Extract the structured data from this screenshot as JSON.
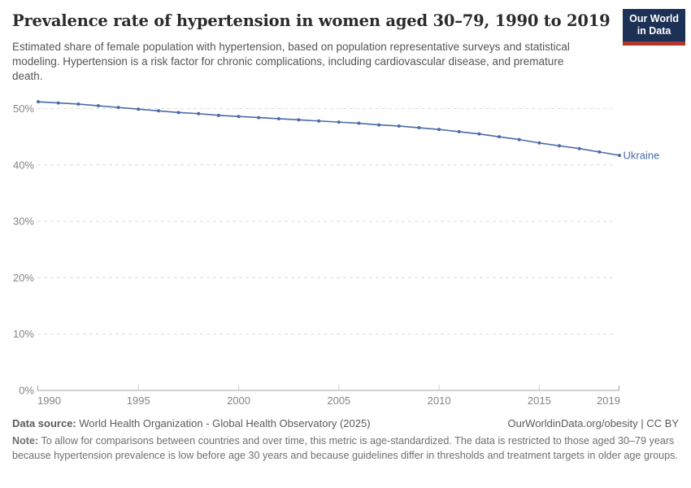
{
  "header": {
    "title": "Prevalence rate of hypertension in women aged 30–79, 1990 to 2019",
    "subtitle": "Estimated share of female population with hypertension, based on population representative surveys and statistical modeling. Hypertension is a risk factor for chronic complications, including cardiovascular disease, and premature death.",
    "logo": {
      "line1": "Our World",
      "line2": "in Data",
      "bg_color": "#1d3156",
      "accent_color": "#b0352c"
    }
  },
  "chart_data": {
    "type": "line",
    "title": "Prevalence rate of hypertension in women aged 30–79, 1990 to 2019",
    "xlabel": "",
    "ylabel": "",
    "xlim": [
      1990,
      2019
    ],
    "ylim": [
      0,
      53
    ],
    "x_ticks": [
      1990,
      1995,
      2000,
      2005,
      2010,
      2015,
      2019
    ],
    "y_ticks": [
      0,
      10,
      20,
      30,
      40,
      50
    ],
    "y_tick_suffix": "%",
    "grid": "horizontal-dashed",
    "legend_position": "end-of-line-label",
    "colors": {
      "gridline": "#dcdcdc",
      "axis": "#a5a5a5",
      "tick": "#cfcfcf",
      "axis_label": "#858585"
    },
    "series": [
      {
        "name": "Ukraine",
        "color": "#4a6ba6",
        "x": [
          1990,
          1991,
          1992,
          1993,
          1994,
          1995,
          1996,
          1997,
          1998,
          1999,
          2000,
          2001,
          2002,
          2003,
          2004,
          2005,
          2006,
          2007,
          2008,
          2009,
          2010,
          2011,
          2012,
          2013,
          2014,
          2015,
          2016,
          2017,
          2018,
          2019
        ],
        "values": [
          51.2,
          51.0,
          50.8,
          50.5,
          50.2,
          49.9,
          49.6,
          49.3,
          49.1,
          48.8,
          48.6,
          48.4,
          48.2,
          48.0,
          47.8,
          47.6,
          47.4,
          47.1,
          46.9,
          46.6,
          46.3,
          45.9,
          45.5,
          45.0,
          44.5,
          43.9,
          43.4,
          42.9,
          42.3,
          41.7
        ]
      }
    ]
  },
  "footer": {
    "data_source_label": "Data source:",
    "data_source": "World Health Organization - Global Health Observatory (2025)",
    "rights": "OurWorldinData.org/obesity | CC BY",
    "note_label": "Note:",
    "note": "To allow for comparisons between countries and over time, this metric is age-standardized. The data is restricted to those aged 30–79 years because hypertension prevalence is low before age 30 years and because guidelines differ in thresholds and treatment targets in older age groups."
  }
}
